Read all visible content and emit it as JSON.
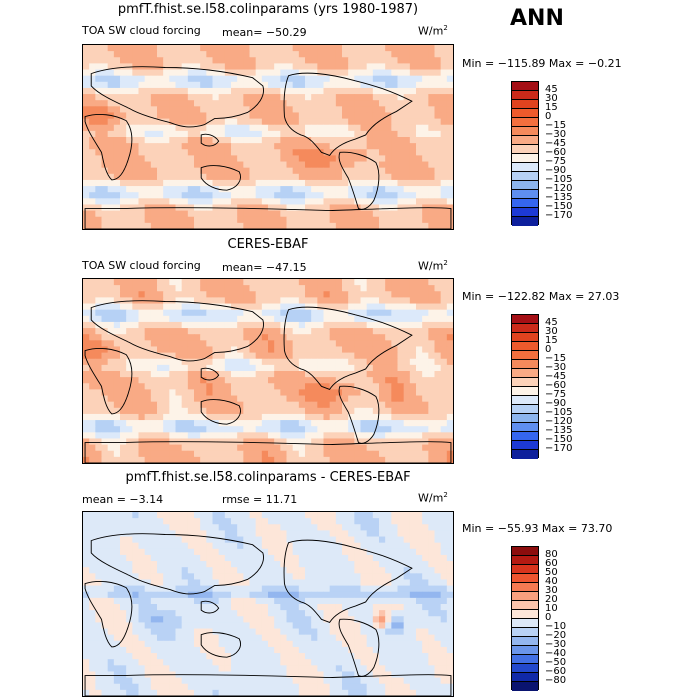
{
  "season_label": "ANN",
  "panels": [
    {
      "title": "pmfT.fhist.se.l58.colinparams (yrs 1980-1987)",
      "left_label": "TOA SW cloud forcing",
      "mean_text": "mean= −50.29",
      "rmse_text": "",
      "units_base": "W/m",
      "units_exp": "2",
      "minmax_text": "Min = −115.89 Max =  −0.21",
      "colorbar": {
        "labels": [
          "45",
          "30",
          "15",
          "0",
          "−15",
          "−30",
          "−45",
          "−60",
          "−75",
          "−90",
          "−105",
          "−120",
          "−135",
          "−150",
          "−170"
        ],
        "colors": [
          "#a50f15",
          "#cb2a1a",
          "#e0431f",
          "#ee5a2c",
          "#f36f3e",
          "#f58a5c",
          "#f9aa85",
          "#fcd2b9",
          "#fdf3e8",
          "#dce9fa",
          "#b6d1f5",
          "#8cb5ee",
          "#5f8ff0",
          "#3566ef",
          "#1d3ad5",
          "#0d1f9c"
        ]
      },
      "scheme": "absolute"
    },
    {
      "title": "CERES-EBAF",
      "left_label": "TOA SW cloud forcing",
      "mean_text": "mean= −47.15",
      "rmse_text": "",
      "units_base": "W/m",
      "units_exp": "2",
      "minmax_text": "Min = −122.82 Max =  27.03",
      "colorbar": {
        "labels": [
          "45",
          "30",
          "15",
          "0",
          "−15",
          "−30",
          "−45",
          "−60",
          "−75",
          "−90",
          "−105",
          "−120",
          "−135",
          "−150",
          "−170"
        ],
        "colors": [
          "#a50f15",
          "#cb2a1a",
          "#e0431f",
          "#ee5a2c",
          "#f36f3e",
          "#f58a5c",
          "#f9aa85",
          "#fcd2b9",
          "#fdf3e8",
          "#dce9fa",
          "#b6d1f5",
          "#8cb5ee",
          "#5f8ff0",
          "#3566ef",
          "#1d3ad5",
          "#0d1f9c"
        ]
      },
      "scheme": "absolute"
    },
    {
      "title": "pmfT.fhist.se.l58.colinparams - CERES-EBAF",
      "left_label": "",
      "mean_text": "mean =   −3.14",
      "rmse_text": "rmse =   11.71",
      "units_base": "W/m",
      "units_exp": "2",
      "minmax_text": "Min = −55.93 Max =  73.70",
      "colorbar": {
        "labels": [
          "80",
          "60",
          "50",
          "40",
          "30",
          "20",
          "10",
          "0",
          "−10",
          "−20",
          "−30",
          "−40",
          "−50",
          "−60",
          "−80"
        ],
        "colors": [
          "#8c0d0d",
          "#b41a12",
          "#d8341d",
          "#ee5530",
          "#f57a52",
          "#f9a07e",
          "#fcc4ac",
          "#fde6d9",
          "#dde9f8",
          "#b9d2f5",
          "#93b6ef",
          "#6a95ea",
          "#4270e4",
          "#2349cc",
          "#1029a8",
          "#0a1470"
        ]
      },
      "scheme": "difference"
    }
  ]
}
